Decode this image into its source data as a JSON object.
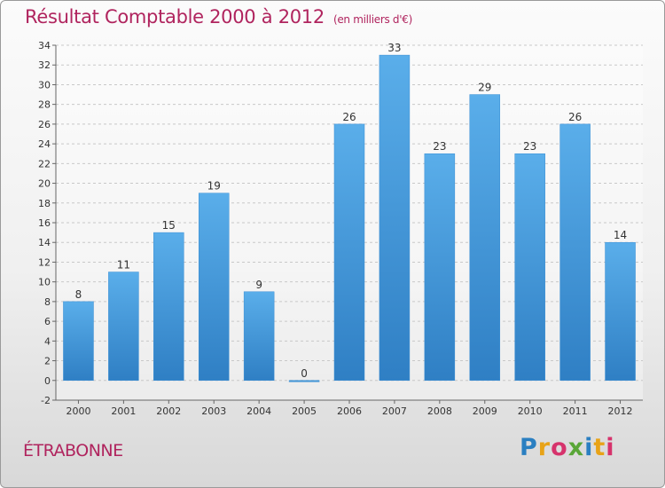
{
  "header": {
    "title": "Résultat Comptable 2000 à 2012",
    "subtitle": "(en milliers d'€)"
  },
  "footer": {
    "place": "ÉTRABONNE",
    "logo_letters": [
      "P",
      "r",
      "o",
      "x",
      "i",
      "t",
      "i"
    ],
    "logo_colors": [
      "#2a7fc1",
      "#e8a317",
      "#d6336c",
      "#59a637",
      "#2a7fc1",
      "#e8a317",
      "#d6336c"
    ]
  },
  "colors": {
    "bar": "#4a9fe0",
    "title": "#b0245e"
  },
  "chart_data": {
    "type": "bar",
    "title": "Résultat Comptable 2000 à 2012",
    "xlabel": "",
    "ylabel": "",
    "categories": [
      "2000",
      "2001",
      "2002",
      "2003",
      "2004",
      "2005",
      "2006",
      "2007",
      "2008",
      "2009",
      "2010",
      "2011",
      "2012"
    ],
    "values": [
      8,
      11,
      15,
      19,
      9,
      0,
      26,
      33,
      23,
      29,
      23,
      26,
      14
    ],
    "ylim": [
      -2,
      34
    ],
    "yticks": [
      -2,
      0,
      2,
      4,
      6,
      8,
      10,
      12,
      14,
      16,
      18,
      20,
      22,
      24,
      26,
      28,
      30,
      32,
      34
    ],
    "grid": true
  }
}
